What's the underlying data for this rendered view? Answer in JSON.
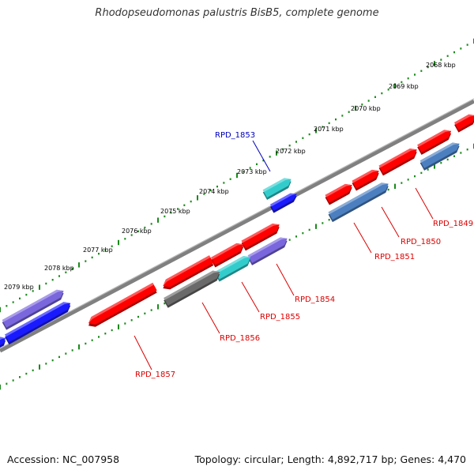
{
  "title": "Rhodopseudomonas palustris BisB5, complete genome",
  "footer": {
    "accession": "Accession: NC_007958",
    "topology": "Topology: circular; Length: 4,892,717 bp; Genes: 4,470"
  },
  "colors": {
    "backbone": "#808080",
    "ticks": "#1a8a1a",
    "red": "#ff0000",
    "cyan": "#33cccc",
    "blue": "#1a1aff",
    "purple": "#7a66dd",
    "steelblue": "#4b7fc0",
    "gray": "#6a6a6a",
    "label_red": "#dd0000",
    "label_blue": "#0000bb"
  },
  "scale_labels": [
    "2068 kbp",
    "2069 kbp",
    "2070 kbp",
    "2071 kbp",
    "2072 kbp",
    "2073 kbp",
    "2074 kbp",
    "2075 kbp",
    "2076 kbp",
    "2077 kbp",
    "2078 kbp",
    "2079 kbp"
  ],
  "gene_labels": [
    {
      "text": "RPD_1853",
      "color": "blue"
    },
    {
      "text": "RPD_1849",
      "color": "red"
    },
    {
      "text": "RPD_1850",
      "color": "red"
    },
    {
      "text": "RPD_1851",
      "color": "red"
    },
    {
      "text": "RPD_1854",
      "color": "red"
    },
    {
      "text": "RPD_1855",
      "color": "red"
    },
    {
      "text": "RPD_1856",
      "color": "red"
    },
    {
      "text": "RPD_1857",
      "color": "red"
    }
  ]
}
